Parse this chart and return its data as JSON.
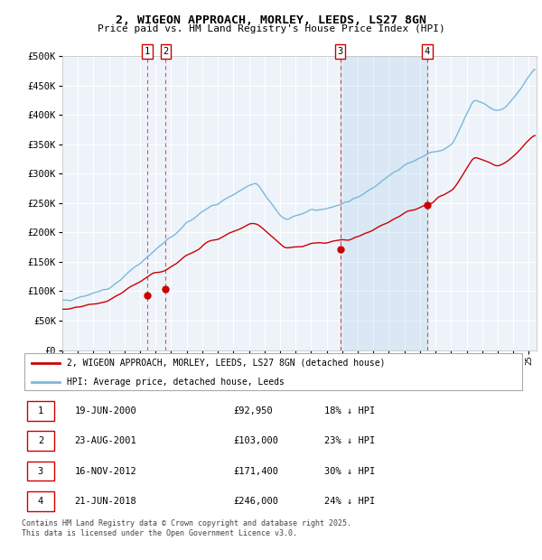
{
  "title": "2, WIGEON APPROACH, MORLEY, LEEDS, LS27 8GN",
  "subtitle": "Price paid vs. HM Land Registry's House Price Index (HPI)",
  "ylim": [
    0,
    500000
  ],
  "yticks": [
    0,
    50000,
    100000,
    150000,
    200000,
    250000,
    300000,
    350000,
    400000,
    450000,
    500000
  ],
  "xlim_start": 1995.0,
  "xlim_end": 2025.5,
  "sale_dates": [
    2000.46,
    2001.64,
    2012.88,
    2018.47
  ],
  "sale_prices": [
    92950,
    103000,
    171400,
    246000
  ],
  "sale_labels": [
    "1",
    "2",
    "3",
    "4"
  ],
  "hpi_color": "#7ab8d9",
  "red_color": "#cc0000",
  "background_color": "#eef3fa",
  "legend_entries": [
    "2, WIGEON APPROACH, MORLEY, LEEDS, LS27 8GN (detached house)",
    "HPI: Average price, detached house, Leeds"
  ],
  "table_rows": [
    [
      "1",
      "19-JUN-2000",
      "£92,950",
      "18% ↓ HPI"
    ],
    [
      "2",
      "23-AUG-2001",
      "£103,000",
      "23% ↓ HPI"
    ],
    [
      "3",
      "16-NOV-2012",
      "£171,400",
      "30% ↓ HPI"
    ],
    [
      "4",
      "21-JUN-2018",
      "£246,000",
      "24% ↓ HPI"
    ]
  ],
  "footnote": "Contains HM Land Registry data © Crown copyright and database right 2025.\nThis data is licensed under the Open Government Licence v3.0.",
  "shaded_region": [
    2012.88,
    2018.47
  ]
}
